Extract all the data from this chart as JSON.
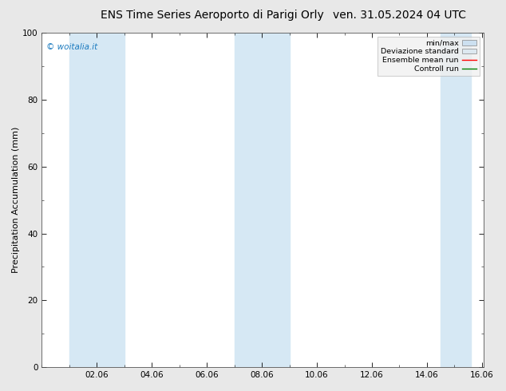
{
  "title_left": "ENS Time Series Aeroporto di Parigi Orly",
  "title_right": "ven. 31.05.2024 04 UTC",
  "ylabel": "Precipitation Accumulation (mm)",
  "ylim": [
    0,
    100
  ],
  "yticks": [
    0,
    20,
    40,
    60,
    80,
    100
  ],
  "watermark": "© woitalia.it",
  "legend_items": [
    {
      "label": "min/max",
      "color": "#cce0f0",
      "style": "fill"
    },
    {
      "label": "Deviazione standard",
      "color": "#dde8f0",
      "style": "fill"
    },
    {
      "label": "Ensemble mean run",
      "color": "red",
      "style": "line"
    },
    {
      "label": "Controll run",
      "color": "green",
      "style": "line"
    }
  ],
  "shaded_bands": [
    {
      "xstart": 1.0,
      "xend": 3.0
    },
    {
      "xstart": 7.0,
      "xend": 9.0
    },
    {
      "xstart": 14.5,
      "xend": 15.6
    }
  ],
  "band_color": "#d6e8f4",
  "background_color": "#e8e8e8",
  "plot_bg_color": "#ffffff",
  "title_fontsize": 10,
  "axis_label_fontsize": 8,
  "tick_fontsize": 7.5,
  "watermark_color": "#1a7abf",
  "xtick_labels": [
    "02.06",
    "04.06",
    "06.06",
    "08.06",
    "10.06",
    "12.06",
    "14.06",
    "16.06"
  ],
  "xtick_positions": [
    2,
    4,
    6,
    8,
    10,
    12,
    14,
    16
  ],
  "xlim": [
    0.0,
    16.06
  ],
  "minor_x_step": 1.0,
  "minor_y_step": 10
}
